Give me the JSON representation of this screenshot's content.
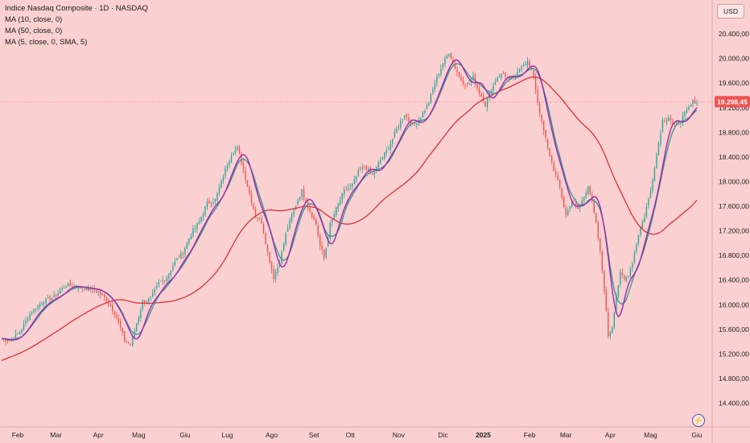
{
  "header": {
    "title": "Indice Nasdaq Composite · 1D · NASDAQ",
    "indicators": [
      "MA (10, close, 0)",
      "MA (50, close, 0)",
      "MA (5, close, 0, SMA, 5)"
    ],
    "currency_button": "USD"
  },
  "current_price_label": "19.298,45",
  "colors": {
    "background": "#fbd0d0",
    "up_candle": "#26a69a",
    "down_candle": "#ef5350",
    "ma10": "#2a9a8c",
    "ma50": "#e0303a",
    "ma5": "#9c27b0",
    "price_tag": "#ef5350"
  },
  "icons": {
    "bottom_right": "lightning-icon"
  },
  "chart_data": {
    "type": "line",
    "x_tick_labels": [
      "Feb",
      "Mar",
      "Apr",
      "Mag",
      "Giu",
      "Lug",
      "Ago",
      "Set",
      "Ott",
      "Nov",
      "Dic",
      "2025",
      "Feb",
      "Mar",
      "Apr",
      "Mag",
      "Giu"
    ],
    "y_tick_labels": [
      "14.400,00",
      "14.800,00",
      "15.200,00",
      "15.600,00",
      "16.000,00",
      "16.400,00",
      "16.800,00",
      "17.200,00",
      "17.600,00",
      "18.000,00",
      "18.400,00",
      "18.800,00",
      "19.200,00",
      "19.600,00",
      "20.000,00",
      "20.400,00"
    ],
    "ylim": [
      14250,
      20650
    ],
    "x_index_range": [
      0,
      345
    ],
    "x_tick_index": [
      8,
      27,
      48,
      68,
      91,
      112,
      134,
      155,
      173,
      197,
      219,
      239,
      262,
      280,
      302,
      322,
      345
    ],
    "close_anchors": [
      [
        0,
        15450
      ],
      [
        4,
        15420
      ],
      [
        9,
        15560
      ],
      [
        14,
        15850
      ],
      [
        20,
        16050
      ],
      [
        26,
        16130
      ],
      [
        32,
        16320
      ],
      [
        38,
        16280
      ],
      [
        44,
        16260
      ],
      [
        48,
        16200
      ],
      [
        53,
        16050
      ],
      [
        57,
        15800
      ],
      [
        61,
        15420
      ],
      [
        64,
        15350
      ],
      [
        67,
        15700
      ],
      [
        70,
        16050
      ],
      [
        74,
        16100
      ],
      [
        78,
        16350
      ],
      [
        82,
        16450
      ],
      [
        86,
        16700
      ],
      [
        90,
        16850
      ],
      [
        94,
        17150
      ],
      [
        98,
        17350
      ],
      [
        102,
        17650
      ],
      [
        106,
        17700
      ],
      [
        110,
        18100
      ],
      [
        114,
        18450
      ],
      [
        117,
        18550
      ],
      [
        120,
        18200
      ],
      [
        123,
        17800
      ],
      [
        126,
        17450
      ],
      [
        129,
        17350
      ],
      [
        132,
        16850
      ],
      [
        135,
        16450
      ],
      [
        138,
        16700
      ],
      [
        141,
        17150
      ],
      [
        145,
        17550
      ],
      [
        149,
        17850
      ],
      [
        152,
        17600
      ],
      [
        156,
        17300
      ],
      [
        158,
        16950
      ],
      [
        160,
        16750
      ],
      [
        163,
        17300
      ],
      [
        166,
        17550
      ],
      [
        170,
        17850
      ],
      [
        174,
        17950
      ],
      [
        177,
        18150
      ],
      [
        180,
        18250
      ],
      [
        184,
        18100
      ],
      [
        188,
        18350
      ],
      [
        192,
        18550
      ],
      [
        196,
        18850
      ],
      [
        200,
        19100
      ],
      [
        204,
        18900
      ],
      [
        208,
        19050
      ],
      [
        212,
        19300
      ],
      [
        215,
        19600
      ],
      [
        218,
        19850
      ],
      [
        222,
        20100
      ],
      [
        225,
        19850
      ],
      [
        228,
        19650
      ],
      [
        231,
        19550
      ],
      [
        234,
        19700
      ],
      [
        237,
        19450
      ],
      [
        240,
        19250
      ],
      [
        243,
        19500
      ],
      [
        246,
        19700
      ],
      [
        249,
        19750
      ],
      [
        252,
        19650
      ],
      [
        255,
        19700
      ],
      [
        258,
        19900
      ],
      [
        261,
        19950
      ],
      [
        264,
        19700
      ],
      [
        266,
        19300
      ],
      [
        268,
        18950
      ],
      [
        271,
        18550
      ],
      [
        274,
        18200
      ],
      [
        277,
        17900
      ],
      [
        280,
        17450
      ],
      [
        283,
        17700
      ],
      [
        286,
        17550
      ],
      [
        289,
        17750
      ],
      [
        291,
        17950
      ],
      [
        293,
        17650
      ],
      [
        295,
        17300
      ],
      [
        297,
        16850
      ],
      [
        299,
        16250
      ],
      [
        301,
        15500
      ],
      [
        303,
        15650
      ],
      [
        305,
        16150
      ],
      [
        307,
        16500
      ],
      [
        309,
        16400
      ],
      [
        311,
        16500
      ],
      [
        313,
        16700
      ],
      [
        316,
        17150
      ],
      [
        319,
        17450
      ],
      [
        322,
        17850
      ],
      [
        325,
        18450
      ],
      [
        328,
        19000
      ],
      [
        331,
        19050
      ],
      [
        334,
        18900
      ],
      [
        337,
        19000
      ],
      [
        340,
        19150
      ],
      [
        343,
        19298
      ]
    ],
    "series": [
      {
        "key": "ma10",
        "name": "MA (10, close, 0)",
        "color": "#2a9a8c",
        "values": []
      },
      {
        "key": "ma50",
        "name": "MA (50, close, 0)",
        "color": "#e0303a",
        "values": []
      },
      {
        "key": "ma5",
        "name": "MA (5, close, 0, SMA, 5)",
        "color": "#9c27b0",
        "values": []
      }
    ],
    "last_price": 19298.45,
    "grid": false
  }
}
